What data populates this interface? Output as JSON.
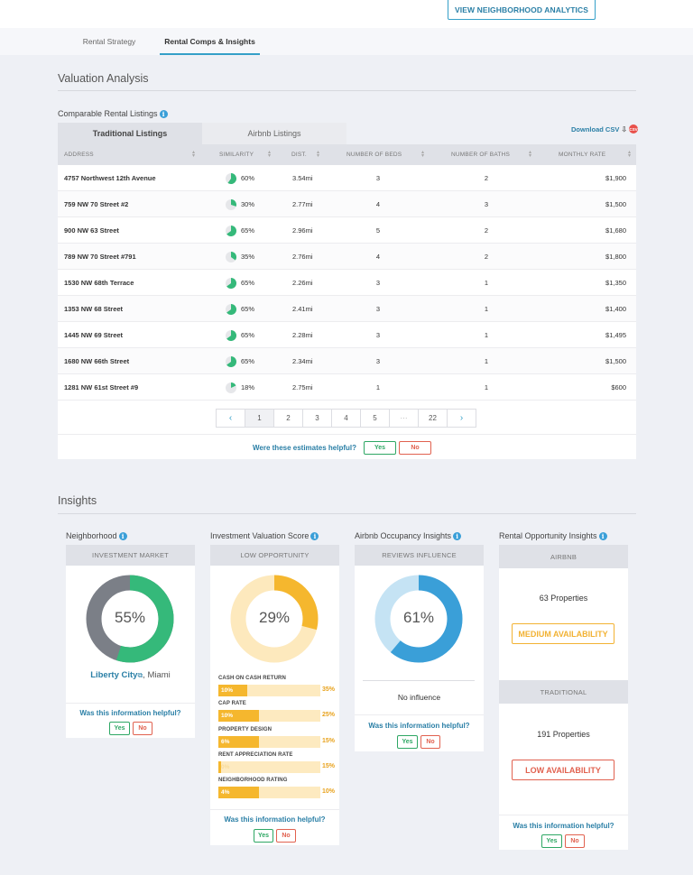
{
  "header": {
    "neighborhood_button": "VIEW NEIGHBORHOOD ANALYTICS",
    "tabs": [
      {
        "label": "Rental Strategy",
        "active": false
      },
      {
        "label": "Rental Comps & Insights",
        "active": true
      }
    ]
  },
  "valuation": {
    "title": "Valuation Analysis",
    "comparable_title": "Comparable Rental Listings",
    "listing_tabs": [
      "Traditional Listings",
      "Airbnb Listings"
    ],
    "download_label": "Download CSV",
    "download_badge": "CSV",
    "columns": [
      "ADDRESS",
      "SIMILARITY",
      "DIST.",
      "NUMBER OF BEDS",
      "NUMBER OF BATHS",
      "MONTHLY RATE"
    ],
    "rows": [
      {
        "address": "4757 Northwest 12th Avenue",
        "similarity_pct": 60,
        "similarity": "60%",
        "dist": "3.54mi",
        "beds": "3",
        "baths": "2",
        "rate": "$1,900"
      },
      {
        "address": "759 NW 70 Street #2",
        "similarity_pct": 30,
        "similarity": "30%",
        "dist": "2.77mi",
        "beds": "4",
        "baths": "3",
        "rate": "$1,500"
      },
      {
        "address": "900 NW 63 Street",
        "similarity_pct": 65,
        "similarity": "65%",
        "dist": "2.96mi",
        "beds": "5",
        "baths": "2",
        "rate": "$1,680"
      },
      {
        "address": "789 NW 70 Street #791",
        "similarity_pct": 35,
        "similarity": "35%",
        "dist": "2.76mi",
        "beds": "4",
        "baths": "2",
        "rate": "$1,800"
      },
      {
        "address": "1530 NW 68th Terrace",
        "similarity_pct": 65,
        "similarity": "65%",
        "dist": "2.26mi",
        "beds": "3",
        "baths": "1",
        "rate": "$1,350"
      },
      {
        "address": "1353 NW 68 Street",
        "similarity_pct": 65,
        "similarity": "65%",
        "dist": "2.41mi",
        "beds": "3",
        "baths": "1",
        "rate": "$1,400"
      },
      {
        "address": "1445 NW 69 Street",
        "similarity_pct": 65,
        "similarity": "65%",
        "dist": "2.28mi",
        "beds": "3",
        "baths": "1",
        "rate": "$1,495"
      },
      {
        "address": "1680 NW 66th Street",
        "similarity_pct": 65,
        "similarity": "65%",
        "dist": "2.34mi",
        "beds": "3",
        "baths": "1",
        "rate": "$1,500"
      },
      {
        "address": "1281 NW 61st Street #9",
        "similarity_pct": 18,
        "similarity": "18%",
        "dist": "2.75mi",
        "beds": "1",
        "baths": "1",
        "rate": "$600"
      }
    ],
    "pagination": {
      "prev": "‹",
      "pages": [
        "1",
        "2",
        "3",
        "4",
        "5",
        "···",
        "22"
      ],
      "next": "›",
      "current": "1"
    },
    "helpful": {
      "question": "Were these estimates helpful?",
      "yes": "Yes",
      "no": "No"
    }
  },
  "insights": {
    "title": "Insights",
    "neighborhood": {
      "title": "Neighborhood",
      "header": "INVESTMENT MARKET",
      "percent": 55,
      "percent_label": "55%",
      "city_link": "Liberty City",
      "city_suffix": ", Miami",
      "helpful": "Was this information helpful?",
      "yes": "Yes",
      "no": "No",
      "color_fill": "#35b97a",
      "color_rest": "#7b7f87"
    },
    "valuation_score": {
      "title": "Investment Valuation Score",
      "header": "LOW OPPORTUNITY",
      "percent": 29,
      "percent_label": "29%",
      "metrics": [
        {
          "label": "CASH ON CASH RETURN",
          "value": 10,
          "value_label": "10%",
          "max_label": "35%",
          "max": 35
        },
        {
          "label": "CAP RATE",
          "value": 10,
          "value_label": "10%",
          "max_label": "25%",
          "max": 25
        },
        {
          "label": "PROPERTY DESIGN",
          "value": 6,
          "value_label": "6%",
          "max_label": "15%",
          "max": 15
        },
        {
          "label": "RENT APPRECIATION RATE",
          "value": 0,
          "value_label": "0%",
          "max_label": "15%",
          "max": 15
        },
        {
          "label": "NEIGHBORHOOD RATING",
          "value": 4,
          "value_label": "4%",
          "max_label": "10%",
          "max": 10
        }
      ],
      "helpful": "Was this information helpful?",
      "yes": "Yes",
      "no": "No",
      "color_fill": "#f5b72e",
      "color_rest": "#fde9bd"
    },
    "occupancy": {
      "title": "Airbnb Occupancy Insights",
      "header": "REVIEWS INFLUENCE",
      "percent": 61,
      "percent_label": "61%",
      "influence": "No influence",
      "helpful": "Was this information helpful?",
      "yes": "Yes",
      "no": "No",
      "color_fill": "#3a9fd8",
      "color_rest": "#c5e3f4"
    },
    "opportunity": {
      "title": "Rental Opportunity Insights",
      "airbnb_header": "AIRBNB",
      "airbnb_count": "63 Properties",
      "airbnb_availability": "MEDIUM AVAILABILITY",
      "traditional_header": "TRADITIONAL",
      "traditional_count": "191 Properties",
      "traditional_availability": "LOW AVAILABILITY",
      "helpful": "Was this information helpful?",
      "yes": "Yes",
      "no": "No",
      "color_medium": "#f2b233",
      "color_low": "#e1614f"
    }
  }
}
